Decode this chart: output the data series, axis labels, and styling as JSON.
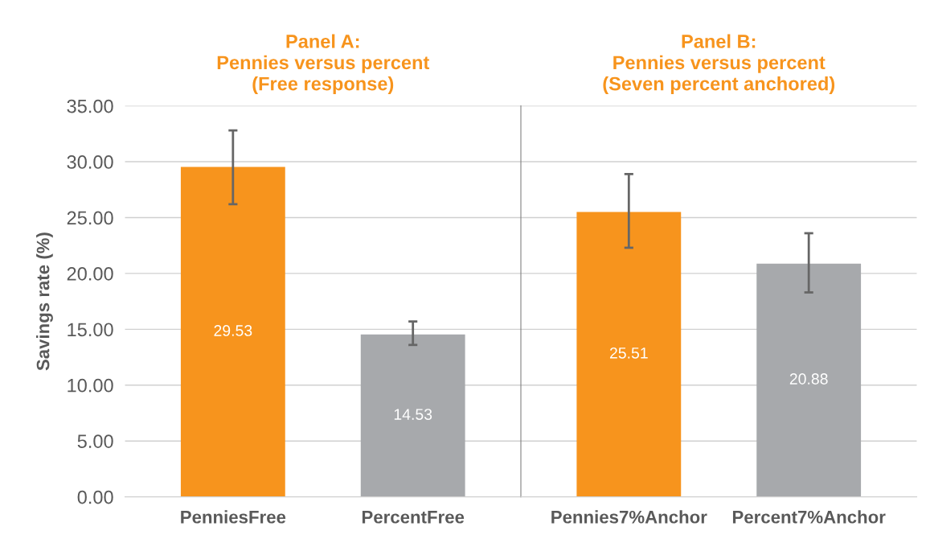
{
  "chart_data": [
    {
      "type": "bar",
      "title": "Panel A:\nPennies versus percent\n(Free response)",
      "ylabel": "Savings rate (%)",
      "categories": [
        "PenniesFree",
        "PercentFree"
      ],
      "values": [
        29.53,
        14.53
      ],
      "colors": [
        "#f7941d",
        "#a7a9ac"
      ],
      "errors": [
        [
          26.2,
          32.8
        ],
        [
          13.6,
          15.7
        ]
      ],
      "data_labels": true,
      "ylim": [
        0,
        35
      ],
      "yticks": [
        {
          "value": 0,
          "label": "0.00"
        },
        {
          "value": 5,
          "label": "5.00"
        },
        {
          "value": 10,
          "label": "10.00"
        },
        {
          "value": 15,
          "label": "15.00"
        },
        {
          "value": 20,
          "label": "20.00"
        },
        {
          "value": 25,
          "label": "25.00"
        },
        {
          "value": 30,
          "label": "30.00"
        },
        {
          "value": 35,
          "label": "35.00"
        }
      ],
      "grid": "y"
    },
    {
      "type": "bar",
      "title": "Panel B:\nPennies versus percent\n(Seven percent anchored)",
      "categories": [
        "Pennies7%Anchor",
        "Percent7%Anchor"
      ],
      "values": [
        25.51,
        20.88
      ],
      "colors": [
        "#f7941d",
        "#a7a9ac"
      ],
      "errors": [
        [
          22.3,
          28.9
        ],
        [
          18.3,
          23.6
        ]
      ],
      "data_labels": true,
      "ylim": [
        0,
        35
      ],
      "yticks": [
        0,
        5,
        10,
        15,
        20,
        25,
        30,
        35
      ],
      "grid": "y",
      "tick_labels": "x"
    }
  ]
}
